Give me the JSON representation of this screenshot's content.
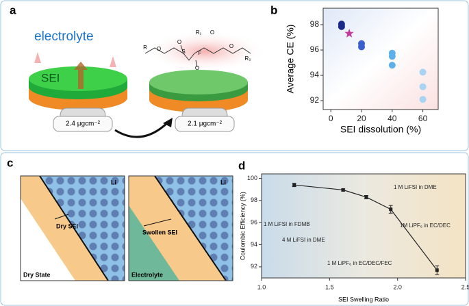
{
  "panels": {
    "a": {
      "label": "a",
      "electrolyte": "electrolyte",
      "sei": "SEI",
      "mass_before": "2.4 μgcm⁻²",
      "mass_after": "2.1 μgcm⁻²",
      "atoms": [
        "R₁",
        "O",
        "O",
        "R₂",
        "R",
        "O",
        "S",
        "O",
        "O",
        "F"
      ]
    },
    "b": {
      "label": "b"
    },
    "c": {
      "label": "c",
      "li_left": "Li",
      "li_right": "Li",
      "dry_sei": "Dry SEI",
      "swollen_sei": "Swollen SEI",
      "dry_state": "Dry State",
      "electrolyte": "Electrolyte"
    },
    "d": {
      "label": "d"
    }
  },
  "chart_data": [
    {
      "type": "scatter",
      "x_label": "SEI dissolution (%)",
      "y_label": "Average CE (%)",
      "xlim": [
        -5,
        70
      ],
      "xticks": [
        0,
        20,
        40,
        60
      ],
      "ylim": [
        91.3,
        99.3
      ],
      "yticks": [
        92,
        94,
        96,
        98
      ],
      "series": [
        {
          "color": "#1b2a8a",
          "marker": "circle",
          "x": [
            7,
            7
          ],
          "values": [
            98.05,
            97.85
          ]
        },
        {
          "color": "#c23a9c",
          "marker": "star",
          "x": [
            12
          ],
          "values": [
            97.3
          ]
        },
        {
          "color": "#3b5fd0",
          "marker": "circle",
          "x": [
            20,
            20
          ],
          "values": [
            96.5,
            96.25
          ]
        },
        {
          "color": "#5fb0ea",
          "marker": "circle",
          "x": [
            40,
            40,
            40
          ],
          "values": [
            95.75,
            95.5,
            94.8
          ]
        },
        {
          "color": "#a9d3f2",
          "marker": "circle",
          "x": [
            60,
            60,
            60
          ],
          "values": [
            94.25,
            93.1,
            92.1
          ]
        }
      ]
    },
    {
      "type": "line",
      "x_label": "SEI Swelling Ratio",
      "y_label": "Coulombic Efficiency (%)",
      "xlim": [
        1.0,
        2.5
      ],
      "xticks": [
        {
          "value": 1.0,
          "label": "1.0"
        },
        1.5,
        {
          "value": 2.0,
          "label": "2.0"
        },
        2.5
      ],
      "ylim": [
        91,
        100.4
      ],
      "yticks": [
        92,
        94,
        96,
        98,
        100
      ],
      "x": [
        1.24,
        1.6,
        1.77,
        1.95,
        2.29
      ],
      "values": [
        99.4,
        98.95,
        98.3,
        97.2,
        91.7
      ],
      "errors": [
        0.15,
        0.1,
        0.15,
        0.35,
        0.4
      ],
      "color": "#222222",
      "annotations": [
        "1 M LiFSI in FDMB",
        "4 M LiFSI in DME",
        "1 M LiFSI in DME",
        "1 M LiPF₆ in EC/DEC/FEC",
        "1M LiPF₆ in EC/DEC"
      ]
    }
  ]
}
